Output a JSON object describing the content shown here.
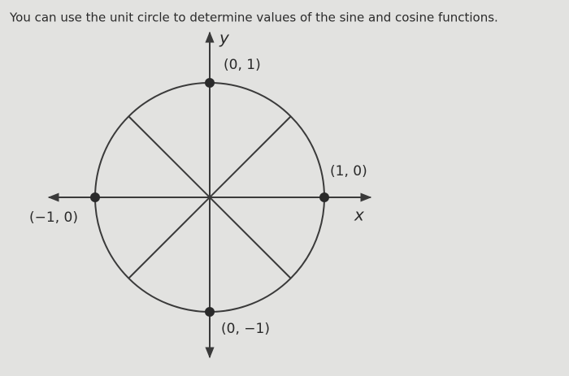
{
  "title": "You can use the unit circle to determine values of the sine and cosine functions.",
  "axes": {
    "x": "x",
    "y": "y"
  },
  "points": [
    {
      "label": "(0, 1)"
    },
    {
      "label": "(1, 0)"
    },
    {
      "label": "(−1, 0)"
    },
    {
      "label": "(0, −1)"
    }
  ]
}
